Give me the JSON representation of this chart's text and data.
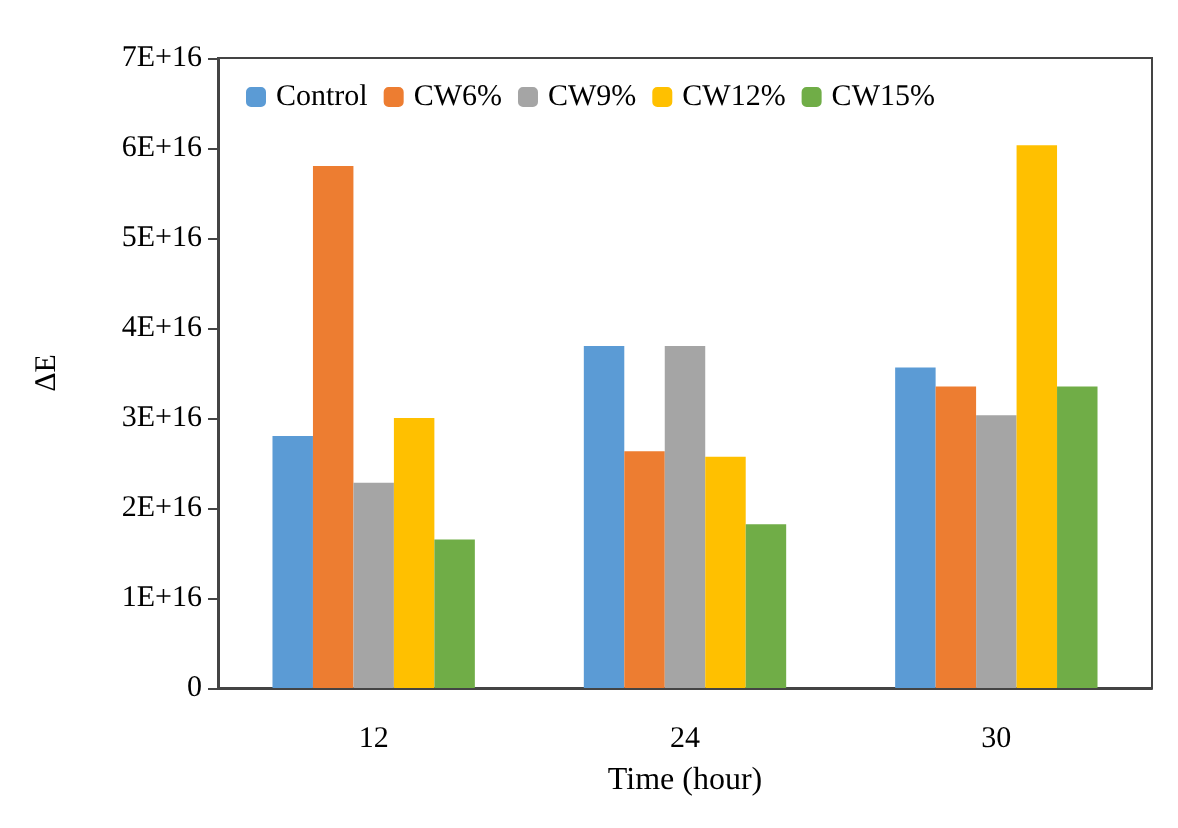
{
  "chart_data": {
    "type": "bar",
    "xlabel": "Time (hour)",
    "ylabel": "ΔE",
    "categories": [
      "12",
      "24",
      "30"
    ],
    "series": [
      {
        "name": "Control",
        "color": "#5b9bd5",
        "values": [
          2.8e+16,
          3.8e+16,
          3.56e+16
        ]
      },
      {
        "name": "CW6%",
        "color": "#ed7d31",
        "values": [
          5.8e+16,
          2.63e+16,
          3.35e+16
        ]
      },
      {
        "name": "CW9%",
        "color": "#a5a5a5",
        "values": [
          2.28e+16,
          3.8e+16,
          3.03e+16
        ]
      },
      {
        "name": "CW12%",
        "color": "#ffc000",
        "values": [
          3e+16,
          2.57e+16,
          6.03e+16
        ]
      },
      {
        "name": "CW15%",
        "color": "#70ad47",
        "values": [
          1.65e+16,
          1.82e+16,
          3.35e+16
        ]
      }
    ],
    "ylim": [
      0,
      7e+16
    ],
    "yticks": [
      0,
      {
        "value": 1e+16,
        "label": "1E+16"
      },
      {
        "value": 2e+16,
        "label": "2E+16"
      },
      {
        "value": 3e+16,
        "label": "3E+16"
      },
      {
        "value": 4e+16,
        "label": "4E+16"
      },
      {
        "value": 5e+16,
        "label": "5E+16"
      },
      {
        "value": 6e+16,
        "label": "6E+16"
      },
      {
        "value": 7e+16,
        "label": "7E+16"
      }
    ],
    "grid": false,
    "legend": "top"
  }
}
